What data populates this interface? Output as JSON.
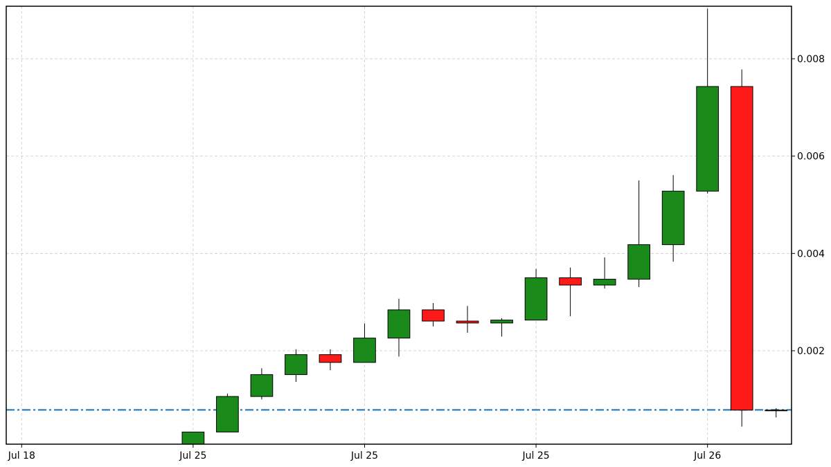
{
  "chart_data": {
    "type": "candlestick",
    "title": "",
    "xlabel": "",
    "ylabel": "",
    "y_axis_side": "right",
    "ylim": [
      8e-05,
      0.00908
    ],
    "yticks": [
      0.002,
      0.004,
      0.006,
      0.008
    ],
    "ytick_labels": [
      "0.002",
      "0.004",
      "0.006",
      "0.008"
    ],
    "x_tick_labels": [
      "Jul 18",
      "Jul 25",
      "Jul 25",
      "Jul 25",
      "Jul 26"
    ],
    "x_tick_positions": [
      0,
      5,
      10,
      15,
      20
    ],
    "xlim": [
      -0.45,
      22.45
    ],
    "grid": true,
    "reference_line": {
      "value": 0.000785,
      "color": "#1f77b4",
      "style": "dash-dot"
    },
    "colors": {
      "up": "#1a8a1a",
      "down": "#ff1a1a"
    },
    "candles": [
      {
        "i": 5,
        "open": 5e-05,
        "high": 0.00033,
        "low": 5e-05,
        "close": 0.00033
      },
      {
        "i": 6,
        "open": 0.00033,
        "high": 0.00112,
        "low": 0.00033,
        "close": 0.00106
      },
      {
        "i": 7,
        "open": 0.00106,
        "high": 0.00164,
        "low": 0.001,
        "close": 0.00151
      },
      {
        "i": 8,
        "open": 0.00151,
        "high": 0.00203,
        "low": 0.00136,
        "close": 0.00192
      },
      {
        "i": 9,
        "open": 0.00192,
        "high": 0.00203,
        "low": 0.0016,
        "close": 0.00176
      },
      {
        "i": 10,
        "open": 0.00176,
        "high": 0.00256,
        "low": 0.00176,
        "close": 0.00226
      },
      {
        "i": 11,
        "open": 0.00226,
        "high": 0.00307,
        "low": 0.00188,
        "close": 0.00284
      },
      {
        "i": 12,
        "open": 0.00284,
        "high": 0.00298,
        "low": 0.0025,
        "close": 0.00261
      },
      {
        "i": 13,
        "open": 0.00261,
        "high": 0.00292,
        "low": 0.00237,
        "close": 0.00257
      },
      {
        "i": 14,
        "open": 0.00257,
        "high": 0.00267,
        "low": 0.00229,
        "close": 0.00263
      },
      {
        "i": 15,
        "open": 0.00263,
        "high": 0.00368,
        "low": 0.00263,
        "close": 0.0035
      },
      {
        "i": 16,
        "open": 0.0035,
        "high": 0.00371,
        "low": 0.00271,
        "close": 0.00335
      },
      {
        "i": 17,
        "open": 0.00335,
        "high": 0.00392,
        "low": 0.00328,
        "close": 0.00347
      },
      {
        "i": 18,
        "open": 0.00347,
        "high": 0.0055,
        "low": 0.00331,
        "close": 0.00418
      },
      {
        "i": 19,
        "open": 0.00418,
        "high": 0.00561,
        "low": 0.00383,
        "close": 0.00528
      },
      {
        "i": 20,
        "open": 0.00528,
        "high": 0.00903,
        "low": 0.00523,
        "close": 0.00743
      },
      {
        "i": 21,
        "open": 0.00743,
        "high": 0.00778,
        "low": 0.00044,
        "close": 0.00078
      },
      {
        "i": 22,
        "open": 0.00078,
        "high": 0.00082,
        "low": 0.00063,
        "close": 0.00078
      }
    ]
  }
}
